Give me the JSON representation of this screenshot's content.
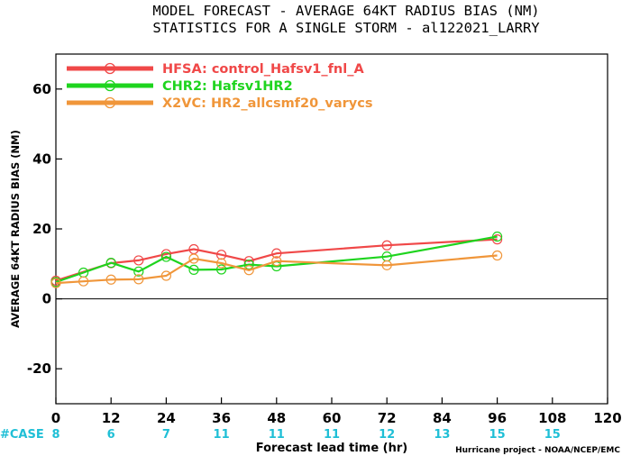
{
  "chart_data": {
    "type": "line",
    "title": "MODEL FORECAST - AVERAGE 64KT RADIUS BIAS (NM)",
    "subtitle": "STATISTICS FOR A SINGLE STORM - al122021_LARRY",
    "xlabel": "Forecast lead time (hr)",
    "ylabel": "AVERAGE 64KT RADIUS BIAS (NM)",
    "xlim": [
      0,
      120
    ],
    "ylim": [
      -30,
      70
    ],
    "xticks": [
      0,
      12,
      24,
      36,
      48,
      60,
      72,
      84,
      96,
      108,
      120
    ],
    "yticks": [
      -20,
      0,
      20,
      40,
      60
    ],
    "xtick_labels": [
      "0",
      "12",
      "24",
      "36",
      "48",
      "60",
      "72",
      "84",
      "96",
      "108",
      "120"
    ],
    "ytick_labels": [
      "-20",
      "0",
      "20",
      "40",
      "60"
    ],
    "zero_line": true,
    "legend_position": "top-left",
    "series": [
      {
        "name": "HFSA: control_Hafsv1_fnl_A",
        "color": "#f04848",
        "x": [
          0,
          12,
          18,
          24,
          30,
          36,
          42,
          48,
          72,
          96
        ],
        "y": [
          5.2,
          10.2,
          11.0,
          12.8,
          14.2,
          12.6,
          10.8,
          13.0,
          15.3,
          17.0
        ]
      },
      {
        "name": "CHR2: Hafsv1HR2",
        "color": "#1ed41e",
        "x": [
          0,
          6,
          12,
          18,
          24,
          30,
          36,
          42,
          48,
          72,
          96
        ],
        "y": [
          4.8,
          7.5,
          10.3,
          7.8,
          12.0,
          8.3,
          8.4,
          9.8,
          9.3,
          12.1,
          17.8
        ]
      },
      {
        "name": "X2VC: HR2_allcsmf20_varycs",
        "color": "#f0963a",
        "x": [
          0,
          6,
          12,
          18,
          24,
          30,
          36,
          42,
          48,
          72,
          96
        ],
        "y": [
          4.5,
          5.0,
          5.5,
          5.6,
          6.6,
          11.5,
          10.2,
          8.2,
          10.8,
          9.6,
          12.4
        ]
      }
    ],
    "case_label": "#CASE",
    "case_counts": [
      {
        "x": 0,
        "value": "8"
      },
      {
        "x": 12,
        "value": "6"
      },
      {
        "x": 24,
        "value": "7"
      },
      {
        "x": 36,
        "value": "11"
      },
      {
        "x": 48,
        "value": "11"
      },
      {
        "x": 60,
        "value": "11"
      },
      {
        "x": 72,
        "value": "12"
      },
      {
        "x": 84,
        "value": "13"
      },
      {
        "x": 96,
        "value": "15"
      },
      {
        "x": 108,
        "value": "15"
      }
    ],
    "credit": "Hurricane project - NOAA/NCEP/EMC"
  }
}
